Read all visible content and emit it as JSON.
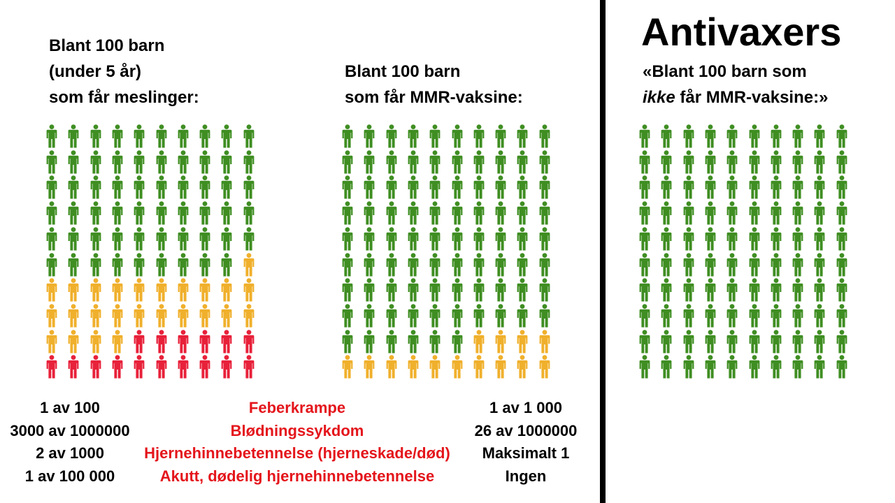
{
  "headings": {
    "measles": [
      "Blant 100 barn",
      "(under 5 år)",
      "som får meslinger:"
    ],
    "mmr": [
      "Blant 100 barn",
      "som får MMR-vaksine:"
    ],
    "antivax_title": "Antivaxers",
    "antivax_line1": "«Blant 100 barn som",
    "antivax_line2_italic": "ikke",
    "antivax_line2_rest": " får MMR-vaksine:»"
  },
  "colors": {
    "green": "#3f8e22",
    "yellow": "#f0b02c",
    "red": "#e8213a",
    "complication_text": "#e4151b"
  },
  "icon": "person-icon",
  "grids": {
    "measles": {
      "total": 100,
      "green": 59,
      "yellow": 25,
      "red": 16
    },
    "mmr": {
      "total": 100,
      "green": 86,
      "yellow": 14,
      "red": 0
    },
    "antivax": {
      "total": 100,
      "green": 100,
      "yellow": 0,
      "red": 0
    }
  },
  "stats": {
    "measles": [
      "1 av 100",
      "3000 av 1000000",
      "2 av 1000",
      "1 av 100 000"
    ],
    "complications": [
      "Feberkrampe",
      "Blødningssykdom",
      "Hjernehinnebetennelse (hjerneskade/død)",
      "Akutt, dødelig hjernehinnebetennelse"
    ],
    "mmr": [
      "1 av 1 000",
      "26 av 1000000",
      "Maksimalt 1",
      "Ingen"
    ]
  }
}
